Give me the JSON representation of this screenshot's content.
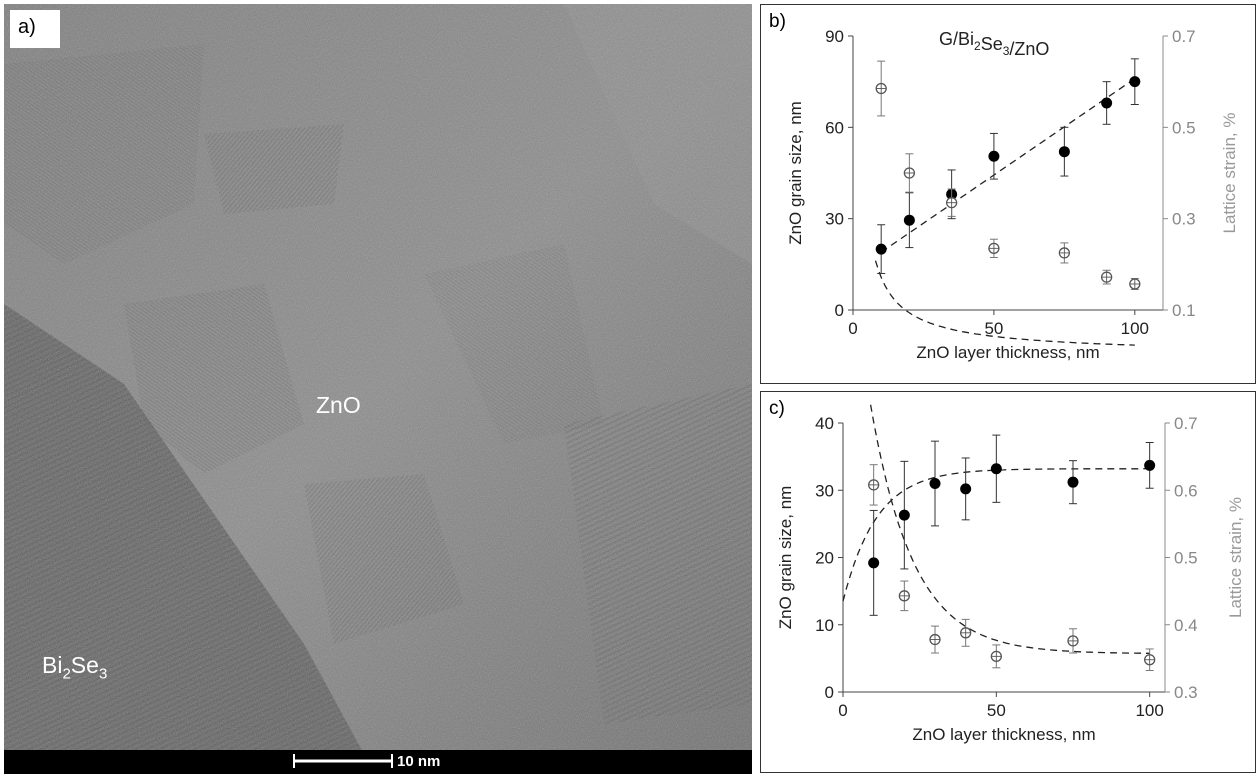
{
  "tem_image": {
    "panel_label": "a)",
    "label_zno": "ZnO",
    "label_bi2se3": {
      "base": "Bi",
      "sub1": "2",
      "mid": "Se",
      "sub2": "3"
    },
    "scale_bar": "10 nm"
  },
  "chart_data": [
    {
      "type": "scatter",
      "panel_label": "b)",
      "title": {
        "base": "G/Bi",
        "sub1": "2",
        "mid": "Se",
        "sub2": "3",
        "tail": "/ZnO"
      },
      "xlabel": "ZnO layer thickness, nm",
      "ylabel": "ZnO grain size, nm",
      "y2label": "Lattice strain, %",
      "xlim": [
        0,
        110
      ],
      "ylim": [
        0,
        90
      ],
      "y2lim": [
        0.1,
        0.7
      ],
      "xticks": [
        "0",
        "50",
        "100"
      ],
      "yticks": [
        "0",
        "30",
        "60",
        "90"
      ],
      "y2ticks": [
        "0.1",
        "0.3",
        "0.5",
        "0.7"
      ],
      "series": [
        {
          "marker": "filled-circle",
          "axis": "left",
          "color": "#000000",
          "x": [
            10,
            20,
            35,
            50,
            75,
            90,
            100
          ],
          "y": [
            20,
            29.5,
            38,
            50.5,
            52,
            68,
            75
          ],
          "err": [
            8,
            9,
            8,
            7.5,
            8,
            7,
            7.5
          ],
          "fit": {
            "kind": "line",
            "from": [
              10,
              19
            ],
            "to": [
              100,
              76
            ]
          }
        },
        {
          "marker": "open-circle-cross",
          "axis": "right",
          "color": "#555555",
          "x": [
            10,
            20,
            35,
            50,
            75,
            90,
            100
          ],
          "y": [
            0.585,
            0.4,
            0.335,
            0.235,
            0.225,
            0.172,
            0.157
          ],
          "err": [
            0.06,
            0.042,
            0.03,
            0.02,
            0.022,
            0.015,
            0.012
          ],
          "fit": {
            "kind": "power",
            "a": 1.27,
            "b": -0.87,
            "from": 8,
            "to": 100
          }
        }
      ]
    },
    {
      "type": "scatter",
      "panel_label": "c)",
      "xlabel": "ZnO layer thickness, nm",
      "ylabel": "ZnO grain size, nm",
      "y2label": "Lattice strain, %",
      "xlim": [
        0,
        105
      ],
      "ylim": [
        0,
        40
      ],
      "y2lim": [
        0.3,
        0.7
      ],
      "xticks": [
        "0",
        "50",
        "100"
      ],
      "yticks": [
        "0",
        "10",
        "20",
        "30",
        "40"
      ],
      "y2ticks": [
        "0.3",
        "0.4",
        "0.5",
        "0.6",
        "0.7"
      ],
      "series": [
        {
          "marker": "filled-circle",
          "axis": "left",
          "color": "#000000",
          "x": [
            10,
            20,
            30,
            40,
            50,
            75,
            100
          ],
          "y": [
            19.2,
            26.3,
            31,
            30.2,
            33.2,
            31.2,
            33.7
          ],
          "err": [
            7.8,
            8,
            6.3,
            4.6,
            5,
            3.2,
            3.4
          ],
          "fit": {
            "kind": "exp-rise",
            "y0": 13.5,
            "yinf": 33.2,
            "tau": 11,
            "from": 0,
            "to": 100
          }
        },
        {
          "marker": "open-circle-cross",
          "axis": "right",
          "color": "#555555",
          "x": [
            10,
            20,
            30,
            40,
            50,
            75,
            100
          ],
          "y": [
            0.608,
            0.443,
            0.378,
            0.388,
            0.353,
            0.376,
            0.348
          ],
          "err": [
            0.03,
            0.022,
            0.02,
            0.02,
            0.017,
            0.018,
            0.016
          ],
          "fit": {
            "kind": "exp-decay-sig",
            "yinf": 0.357,
            "amp": 0.37,
            "k": 0.00175,
            "from": 9,
            "to": 100
          }
        }
      ]
    }
  ]
}
